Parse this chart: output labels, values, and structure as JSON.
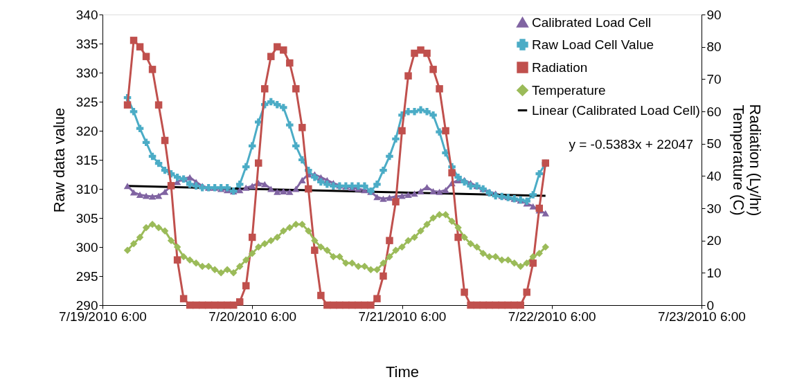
{
  "chart_data": {
    "type": "line",
    "xlabel": "Time",
    "ylabel": "Raw data value",
    "y2label": "Radiation (Ly/hr)\nTemperature (C)",
    "x": [
      "2010-07-19T10:00",
      "2010-07-19T11:00",
      "2010-07-19T12:00",
      "2010-07-19T13:00",
      "2010-07-19T14:00",
      "2010-07-19T15:00",
      "2010-07-19T16:00",
      "2010-07-19T17:00",
      "2010-07-19T18:00",
      "2010-07-19T19:00",
      "2010-07-19T20:00",
      "2010-07-19T21:00",
      "2010-07-19T22:00",
      "2010-07-19T23:00",
      "2010-07-20T00:00",
      "2010-07-20T01:00",
      "2010-07-20T02:00",
      "2010-07-20T03:00",
      "2010-07-20T04:00",
      "2010-07-20T05:00",
      "2010-07-20T06:00",
      "2010-07-20T07:00",
      "2010-07-20T08:00",
      "2010-07-20T09:00",
      "2010-07-20T10:00",
      "2010-07-20T11:00",
      "2010-07-20T12:00",
      "2010-07-20T13:00",
      "2010-07-20T14:00",
      "2010-07-20T15:00",
      "2010-07-20T16:00",
      "2010-07-20T17:00",
      "2010-07-20T18:00",
      "2010-07-20T19:00",
      "2010-07-20T20:00",
      "2010-07-20T21:00",
      "2010-07-20T22:00",
      "2010-07-20T23:00",
      "2010-07-21T00:00",
      "2010-07-21T01:00",
      "2010-07-21T02:00",
      "2010-07-21T03:00",
      "2010-07-21T04:00",
      "2010-07-21T05:00",
      "2010-07-21T06:00",
      "2010-07-21T07:00",
      "2010-07-21T08:00",
      "2010-07-21T09:00",
      "2010-07-21T10:00",
      "2010-07-21T11:00",
      "2010-07-21T12:00",
      "2010-07-21T13:00",
      "2010-07-21T14:00",
      "2010-07-21T15:00",
      "2010-07-21T16:00",
      "2010-07-21T17:00",
      "2010-07-21T18:00",
      "2010-07-21T19:00",
      "2010-07-21T20:00",
      "2010-07-21T21:00",
      "2010-07-21T22:00",
      "2010-07-21T23:00",
      "2010-07-22T00:00",
      "2010-07-22T01:00",
      "2010-07-22T02:00",
      "2010-07-22T03:00",
      "2010-07-22T04:00",
      "2010-07-22T05:00"
    ],
    "series": [
      {
        "name": "Calibrated Load Cell",
        "color": "#8064a2",
        "marker": "triangle",
        "values": [
          310.5,
          309.4,
          309,
          308.8,
          308.7,
          308.8,
          309.5,
          310.5,
          311.2,
          311.8,
          312,
          311.2,
          310.5,
          310.2,
          310.2,
          310,
          309.8,
          309.6,
          309.8,
          310.2,
          310.5,
          311,
          310.8,
          310,
          309.5,
          309.6,
          309.5,
          310,
          311.5,
          312.5,
          312.5,
          312,
          311.5,
          311,
          310.6,
          310.4,
          310.2,
          310,
          309.8,
          309.5,
          308.6,
          308.3,
          308.5,
          308.7,
          308.8,
          309,
          309.2,
          309.6,
          310.3,
          309.6,
          309.5,
          309.8,
          311,
          311.5,
          311.5,
          311,
          310.5,
          310,
          309.5,
          309.2,
          308.8,
          308.6,
          308.3,
          308,
          307.5,
          307,
          306.3,
          305.8
        ]
      },
      {
        "name": "Raw Load Cell Value",
        "color": "#4bacc6",
        "marker": "cross",
        "values": [
          325.7,
          323.3,
          320.4,
          318,
          315.6,
          314.4,
          313.2,
          312.6,
          312,
          311.7,
          310.8,
          310.5,
          310.2,
          310.2,
          310.2,
          310.2,
          310.2,
          309.6,
          310.8,
          313.8,
          317.4,
          321.5,
          324.5,
          325,
          324.5,
          324,
          321,
          317.4,
          315,
          313.2,
          312,
          311.2,
          310.8,
          310.5,
          310.5,
          310.5,
          310.5,
          310.5,
          310.5,
          309.6,
          310.8,
          313.2,
          315.6,
          318.6,
          322.7,
          323.3,
          323.3,
          323.6,
          323.3,
          322.7,
          319.8,
          316.2,
          313.8,
          312,
          311.2,
          310.5,
          310.5,
          310,
          309.3,
          308.8,
          308.7,
          308.5,
          308.3,
          308.1,
          307.9,
          309,
          312.6,
          314.4
        ]
      },
      {
        "name": "Radiation",
        "color": "#c0504d",
        "marker": "square",
        "axis": "y2",
        "values": [
          62,
          82,
          80,
          77,
          73,
          62,
          51,
          37,
          14,
          2,
          0,
          0,
          0,
          0,
          0,
          0,
          0,
          0,
          1,
          6,
          21,
          44,
          67,
          77,
          80,
          79,
          75,
          67,
          55,
          36,
          17,
          3,
          0,
          0,
          0,
          0,
          0,
          0,
          0,
          0,
          2,
          9,
          20,
          32,
          54,
          71,
          78,
          79,
          78,
          73,
          67,
          54,
          41,
          21,
          4,
          0,
          0,
          0,
          0,
          0,
          0,
          0,
          0,
          0,
          4,
          13,
          30,
          44
        ]
      },
      {
        "name": "Temperature",
        "color": "#9bbb59",
        "marker": "diamond",
        "axis": "y2",
        "values": [
          17,
          19,
          21,
          24,
          25,
          24,
          23,
          20,
          18,
          15,
          14,
          13,
          12,
          12,
          11,
          10,
          11,
          10,
          12,
          14,
          16,
          18,
          19,
          20,
          21,
          23,
          24,
          25,
          25,
          23,
          20,
          18,
          17,
          15,
          15,
          13,
          13,
          12,
          12,
          11,
          11,
          13,
          15,
          17,
          18,
          20,
          21,
          23,
          25,
          27,
          28,
          28,
          26,
          24,
          21,
          19,
          18,
          16,
          15,
          15,
          14,
          14,
          13,
          12,
          13,
          15,
          16,
          18
        ]
      },
      {
        "name": "Linear (Calibrated Load Cell)",
        "color": "#000000",
        "marker": "none",
        "x": [
          "2010-07-19T10:00",
          "2010-07-22T05:00"
        ],
        "values": [
          310.5,
          308.8
        ]
      }
    ],
    "xlim": [
      "2010-07-19T06:00",
      "2010-07-23T06:00"
    ],
    "xticks": [
      {
        "value": "2010-07-19T06:00",
        "label": "7/19/2010 6:00"
      },
      {
        "value": "2010-07-20T06:00",
        "label": "7/20/2010 6:00"
      },
      {
        "value": "2010-07-21T06:00",
        "label": "7/21/2010 6:00"
      },
      {
        "value": "2010-07-22T06:00",
        "label": "7/22/2010 6:00"
      },
      {
        "value": "2010-07-23T06:00",
        "label": "7/23/2010 6:00"
      }
    ],
    "ylim": [
      290,
      340
    ],
    "yticks": [
      290,
      295,
      300,
      305,
      310,
      315,
      320,
      325,
      330,
      335,
      340
    ],
    "y2lim": [
      0,
      90
    ],
    "y2ticks": [
      0,
      10,
      20,
      30,
      40,
      50,
      60,
      70,
      80,
      90
    ],
    "grid": false,
    "legend": "top right",
    "line_style": "solid",
    "annotations": [
      "y = -0.5383x + 22047"
    ]
  }
}
